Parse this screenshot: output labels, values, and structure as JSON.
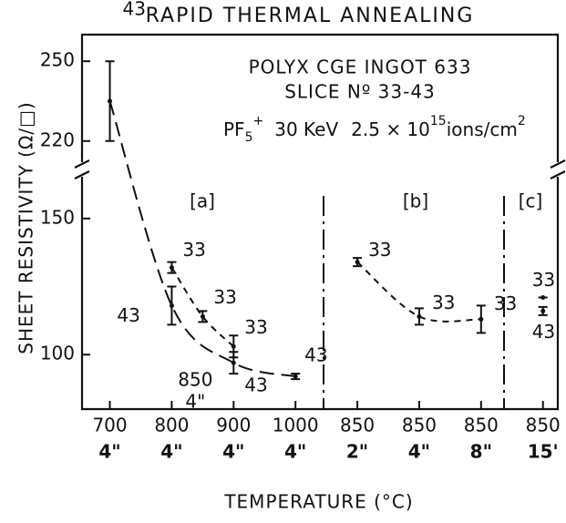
{
  "chart_data": {
    "type": "errorbar",
    "title": "RAPID THERMAL ANNEALING",
    "subtitle_lines": [
      "POLYX CGE INGOT 633",
      "SLICE Nº 33-43"
    ],
    "implant": {
      "ion": "PF",
      "ion_sub": "5",
      "ion_sup": "+",
      "energy": "30 KeV",
      "dose": "2.5 × 10",
      "dose_exp": "15",
      "dose_unit": "ions/cm",
      "unit_exp": "2"
    },
    "xlabel": "TEMPERATURE (°C)",
    "ylabel": "SHEET RESISTIVITY (Ω/□)",
    "xlim": [
      -0.45,
      7.24
    ],
    "xticks": [
      {
        "value": 0,
        "label": "700"
      },
      {
        "value": 1,
        "label": "800"
      },
      {
        "value": 2,
        "label": "900"
      },
      {
        "value": 3,
        "label": "1000"
      },
      {
        "value": 4,
        "label": "850"
      },
      {
        "value": 5,
        "label": "850"
      },
      {
        "value": 6,
        "label": "850"
      },
      {
        "value": 7,
        "label": "850"
      }
    ],
    "xtick_times": [
      "4\"",
      "4\"",
      "4\"",
      "4\"",
      "2\"",
      "4\"",
      "8\"",
      "15'"
    ],
    "y_segments": [
      {
        "ylim": [
          210,
          260
        ],
        "yticks": [
          220,
          250
        ]
      },
      {
        "ylim": [
          80,
          167
        ],
        "yticks": [
          100,
          150
        ]
      }
    ],
    "groups": [
      "[a]",
      "[b]",
      "[c]"
    ],
    "annotations": [
      {
        "lines": [
          "850",
          "4\""
        ],
        "x": 1.5
      }
    ],
    "series": [
      {
        "name": "43",
        "line": "long-dash",
        "x": [
          0,
          1,
          2,
          3
        ],
        "values": [
          235,
          118,
          97,
          92
        ],
        "errors": [
          15,
          7,
          4,
          1
        ]
      },
      {
        "name": "33",
        "line": "short-dash",
        "x": [
          1,
          1.5,
          2
        ],
        "values": [
          132,
          114,
          103
        ],
        "errors": [
          2,
          2,
          4
        ]
      },
      {
        "name": "33",
        "line": "short-dash",
        "x": [
          4,
          5,
          6
        ],
        "values": [
          134,
          114,
          113
        ],
        "errors": [
          1.5,
          3,
          5
        ]
      },
      {
        "name": "33",
        "x": [
          7
        ],
        "values": [
          121
        ],
        "errors": [
          0
        ]
      },
      {
        "name": "43",
        "x": [
          7
        ],
        "values": [
          116
        ],
        "errors": [
          1.5
        ]
      }
    ],
    "color": "#111111"
  }
}
